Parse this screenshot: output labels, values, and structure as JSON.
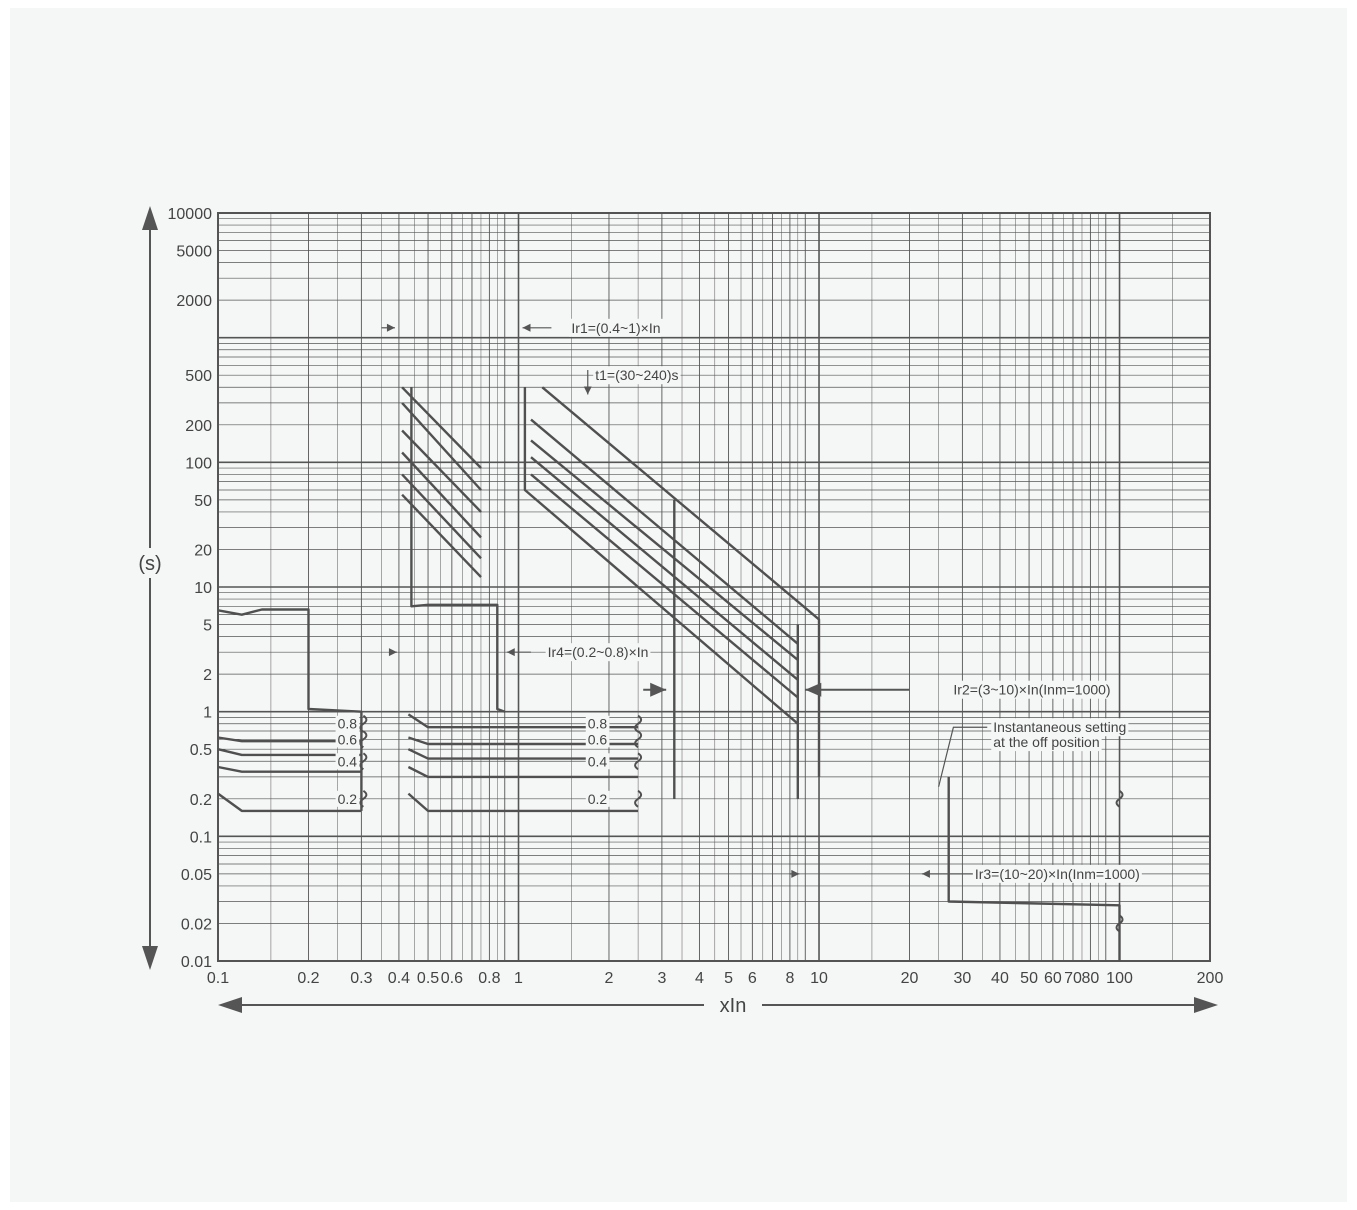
{
  "chart_data": {
    "type": "line",
    "xlabel": "xIn",
    "ylabel": "(s)",
    "xscale": "log",
    "yscale": "log",
    "xlim": [
      0.1,
      200
    ],
    "ylim": [
      0.01,
      10000
    ],
    "grid": true,
    "x_ticks": [
      {
        "v": 0.1,
        "label": "0.1"
      },
      {
        "v": 0.2,
        "label": "0.2"
      },
      {
        "v": 0.3,
        "label": "0.3"
      },
      {
        "v": 0.4,
        "label": "0.4"
      },
      {
        "v": 0.5,
        "label": "0.5"
      },
      {
        "v": 0.6,
        "label": "0.6"
      },
      {
        "v": 0.8,
        "label": "0.8"
      },
      {
        "v": 1,
        "label": "1"
      },
      {
        "v": 2,
        "label": "2"
      },
      {
        "v": 3,
        "label": "3"
      },
      {
        "v": 4,
        "label": "4"
      },
      {
        "v": 5,
        "label": "5"
      },
      {
        "v": 6,
        "label": "6"
      },
      {
        "v": 8,
        "label": "8"
      },
      {
        "v": 10,
        "label": "10"
      },
      {
        "v": 20,
        "label": "20"
      },
      {
        "v": 30,
        "label": "30"
      },
      {
        "v": 40,
        "label": "40"
      },
      {
        "v": 50,
        "label": "50"
      },
      {
        "v": 60,
        "label": "60"
      },
      {
        "v": 70,
        "label": "70"
      },
      {
        "v": 80,
        "label": "80"
      },
      {
        "v": 100,
        "label": "100"
      },
      {
        "v": 200,
        "label": "200"
      }
    ],
    "y_ticks": [
      {
        "v": 10000,
        "label": "10000"
      },
      {
        "v": 5000,
        "label": "5000"
      },
      {
        "v": 2000,
        "label": "2000"
      },
      {
        "v": 500,
        "label": "500"
      },
      {
        "v": 200,
        "label": "200"
      },
      {
        "v": 100,
        "label": "100"
      },
      {
        "v": 50,
        "label": "50"
      },
      {
        "v": 20,
        "label": "20"
      },
      {
        "v": 10,
        "label": "10"
      },
      {
        "v": 5,
        "label": "5"
      },
      {
        "v": 2,
        "label": "2"
      },
      {
        "v": 1,
        "label": "1"
      },
      {
        "v": 0.5,
        "label": "0.5"
      },
      {
        "v": 0.2,
        "label": "0.2"
      },
      {
        "v": 0.1,
        "label": "0.1"
      },
      {
        "v": 0.05,
        "label": "0.05"
      },
      {
        "v": 0.02,
        "label": "0.02"
      },
      {
        "v": 0.01,
        "label": "0.01"
      }
    ],
    "series": [
      {
        "points": [
          [
            0.1,
            6.5
          ],
          [
            0.12,
            6.0
          ],
          [
            0.14,
            6.6
          ],
          [
            0.2,
            6.6
          ],
          [
            0.2,
            1.05
          ],
          [
            0.3,
            1.0
          ],
          [
            0.3,
            0.16
          ]
        ]
      },
      {
        "points": [
          [
            0.44,
            400
          ],
          [
            0.44,
            7.0
          ],
          [
            0.5,
            7.2
          ],
          [
            0.85,
            7.2
          ],
          [
            0.85,
            1.05
          ],
          [
            0.9,
            1.0
          ]
        ]
      },
      {
        "points": [
          [
            0.41,
            400
          ],
          [
            0.75,
            90
          ]
        ]
      },
      {
        "points": [
          [
            0.41,
            300
          ],
          [
            0.75,
            60
          ]
        ]
      },
      {
        "points": [
          [
            0.41,
            180
          ],
          [
            0.75,
            40
          ]
        ]
      },
      {
        "points": [
          [
            0.41,
            120
          ],
          [
            0.75,
            25
          ]
        ]
      },
      {
        "points": [
          [
            0.41,
            80
          ],
          [
            0.75,
            17
          ]
        ]
      },
      {
        "points": [
          [
            0.41,
            55
          ],
          [
            0.75,
            12
          ]
        ]
      },
      {
        "points": [
          [
            1.05,
            400
          ],
          [
            1.05,
            60
          ],
          [
            8.5,
            0.8
          ]
        ]
      },
      {
        "points": [
          [
            1.2,
            400
          ],
          [
            10,
            5.5
          ],
          [
            10,
            0.3
          ]
        ]
      },
      {
        "points": [
          [
            1.1,
            220
          ],
          [
            8.5,
            3.5
          ]
        ]
      },
      {
        "points": [
          [
            1.1,
            150
          ],
          [
            8.5,
            2.6
          ]
        ]
      },
      {
        "points": [
          [
            1.1,
            110
          ],
          [
            8.5,
            1.8
          ]
        ]
      },
      {
        "points": [
          [
            1.1,
            80
          ],
          [
            8.5,
            1.3
          ]
        ]
      },
      {
        "points": [
          [
            3.3,
            50
          ],
          [
            3.3,
            0.2
          ]
        ]
      },
      {
        "points": [
          [
            8.5,
            5.0
          ],
          [
            8.5,
            0.2
          ]
        ]
      },
      {
        "points": [
          [
            0.1,
            0.62
          ],
          [
            0.12,
            0.58
          ],
          [
            0.3,
            0.58
          ]
        ]
      },
      {
        "points": [
          [
            0.1,
            0.5
          ],
          [
            0.12,
            0.45
          ],
          [
            0.3,
            0.45
          ]
        ]
      },
      {
        "points": [
          [
            0.1,
            0.36
          ],
          [
            0.12,
            0.33
          ],
          [
            0.3,
            0.33
          ]
        ]
      },
      {
        "points": [
          [
            0.1,
            0.22
          ],
          [
            0.12,
            0.16
          ],
          [
            0.3,
            0.16
          ]
        ]
      },
      {
        "points": [
          [
            0.43,
            0.95
          ],
          [
            0.5,
            0.75
          ],
          [
            2.5,
            0.75
          ]
        ]
      },
      {
        "points": [
          [
            0.43,
            0.62
          ],
          [
            0.5,
            0.55
          ],
          [
            2.5,
            0.55
          ]
        ]
      },
      {
        "points": [
          [
            0.43,
            0.5
          ],
          [
            0.5,
            0.42
          ],
          [
            2.5,
            0.42
          ]
        ]
      },
      {
        "points": [
          [
            0.43,
            0.36
          ],
          [
            0.5,
            0.3
          ],
          [
            2.5,
            0.3
          ]
        ]
      },
      {
        "points": [
          [
            0.43,
            0.22
          ],
          [
            0.5,
            0.16
          ],
          [
            2.5,
            0.16
          ]
        ]
      },
      {
        "points": [
          [
            27,
            0.3
          ],
          [
            27,
            0.03
          ],
          [
            100,
            0.028
          ],
          [
            100,
            0.01
          ]
        ]
      }
    ],
    "annotations": [
      {
        "text": "Ir1=(0.4~1)×In",
        "x": 1.5,
        "y": 1200
      },
      {
        "text": "t1=(30~240)s",
        "x": 1.8,
        "y": 500
      },
      {
        "text": "Ir4=(0.2~0.8)×In",
        "x": 1.25,
        "y": 3
      },
      {
        "text": "Ir2=(3~10)×In(Inm=1000)",
        "x": 28,
        "y": 1.5
      },
      {
        "text": "Instantaneous setting",
        "x": 38,
        "y": 0.75
      },
      {
        "text": "at the off position",
        "x": 38,
        "y": 0.57
      },
      {
        "text": "Ir3=(10~20)×In(Inm=1000)",
        "x": 33,
        "y": 0.05
      }
    ],
    "curve_labels_left": [
      "0.8",
      "0.6",
      "0.4",
      "0.2"
    ],
    "curve_labels_right": [
      "0.8",
      "0.6",
      "0.4",
      "0.2"
    ]
  }
}
